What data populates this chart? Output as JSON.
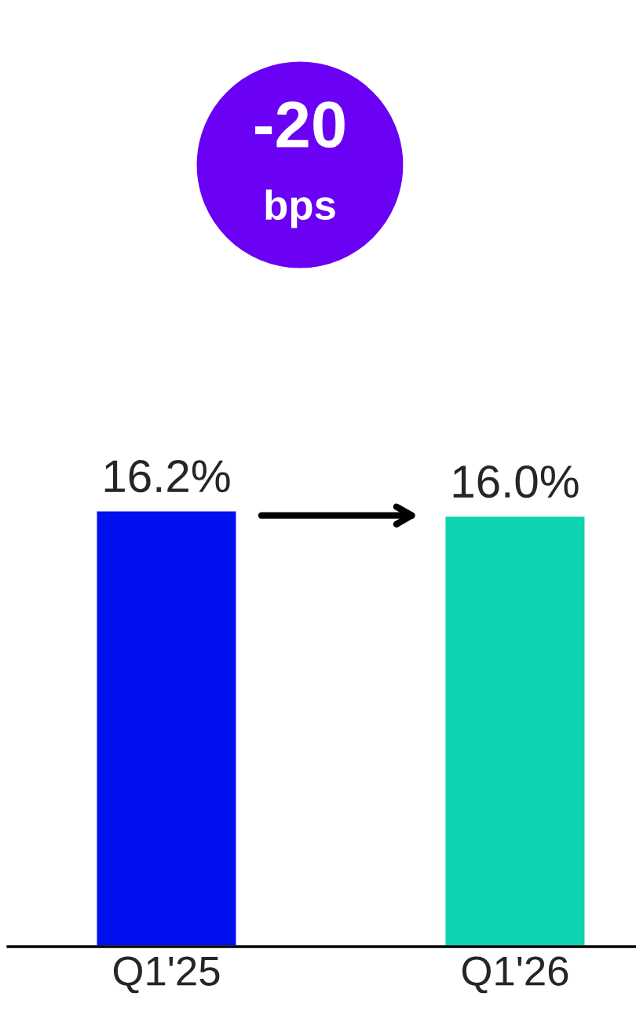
{
  "chart_data": {
    "type": "bar",
    "categories": [
      "Q1'25",
      "Q1'26"
    ],
    "values": [
      16.2,
      16.0
    ],
    "colors": [
      "#0010ee",
      "#0dd3b0"
    ],
    "value_labels": [
      "16.2%",
      "16.0%"
    ],
    "tick_labels": "x",
    "grid": false,
    "legend": false,
    "annotations": [
      "-20",
      "bps"
    ]
  }
}
